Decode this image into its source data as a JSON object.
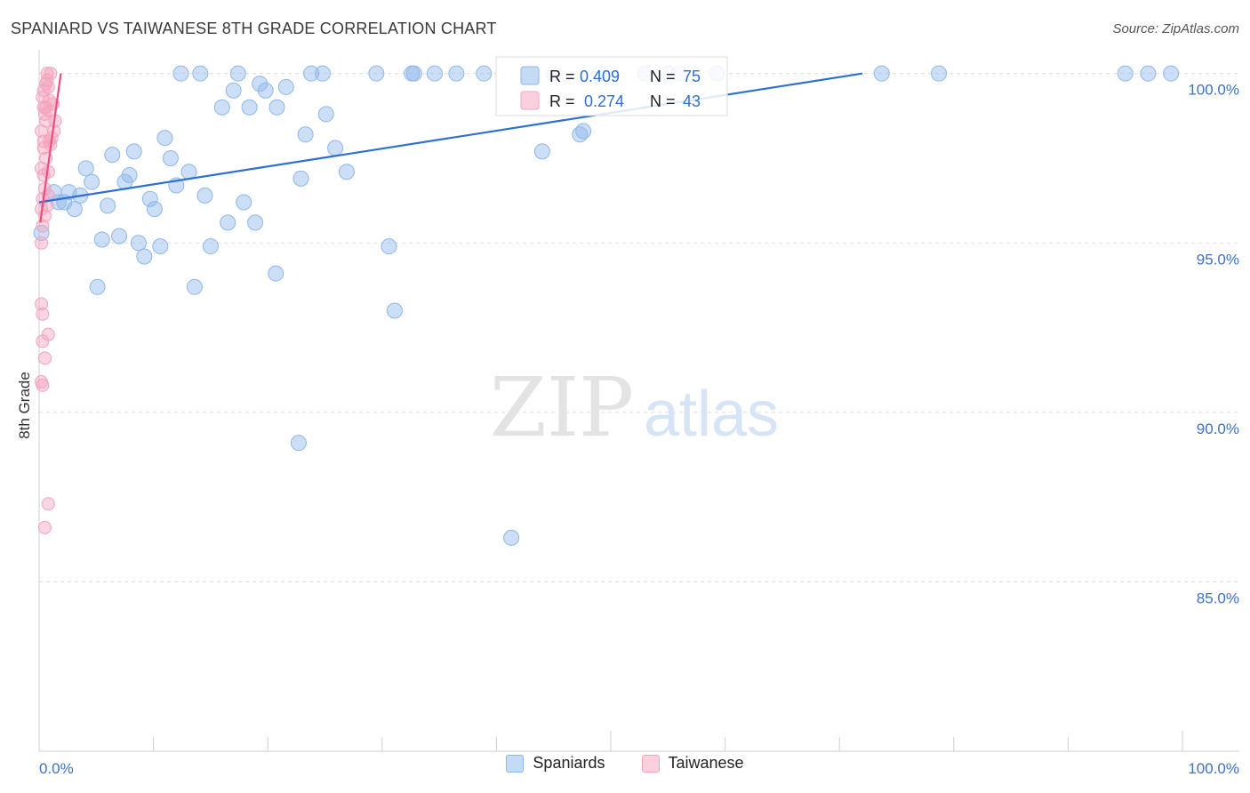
{
  "chart_data": {
    "type": "scatter",
    "title": "SPANIARD VS TAIWANESE 8TH GRADE CORRELATION CHART",
    "source": "Source: ZipAtlas.com",
    "ylabel": "8th Grade",
    "xlabel": "",
    "xlim": [
      0,
      100
    ],
    "ylim": [
      80.0,
      100.7
    ],
    "x_tick_labels": [
      "0.0%",
      "100.0%"
    ],
    "y_ticks": [
      {
        "value": 100.0,
        "label": "100.0%"
      },
      {
        "value": 95.0,
        "label": "95.0%"
      },
      {
        "value": 90.0,
        "label": "90.0%"
      },
      {
        "value": 85.0,
        "label": "85.0%"
      }
    ],
    "legend": {
      "r_label": "R =",
      "n_label": "N =",
      "rows": [
        {
          "r": "0.409",
          "n": "75"
        },
        {
          "r": "0.274",
          "n": "43"
        }
      ]
    },
    "watermark": {
      "zip": "ZIP",
      "atlas": "atlas"
    },
    "series": [
      {
        "name": "Spaniards",
        "color": "#8fb7ea",
        "line_color": "#2f6fd0",
        "trend": {
          "x": [
            0.0,
            72.0
          ],
          "y": [
            96.2,
            100.0
          ]
        },
        "points": [
          [
            0.2,
            95.3
          ],
          [
            1.3,
            96.5
          ],
          [
            1.7,
            96.2
          ],
          [
            2.2,
            96.2
          ],
          [
            2.6,
            96.5
          ],
          [
            3.1,
            96.0
          ],
          [
            3.6,
            96.4
          ],
          [
            4.1,
            97.2
          ],
          [
            4.6,
            96.8
          ],
          [
            5.1,
            93.7
          ],
          [
            5.5,
            95.1
          ],
          [
            6.0,
            96.1
          ],
          [
            6.4,
            97.6
          ],
          [
            7.0,
            95.2
          ],
          [
            7.5,
            96.8
          ],
          [
            7.9,
            97.0
          ],
          [
            8.3,
            97.7
          ],
          [
            8.7,
            95.0
          ],
          [
            9.2,
            94.6
          ],
          [
            9.7,
            96.3
          ],
          [
            10.1,
            96.0
          ],
          [
            10.6,
            94.9
          ],
          [
            11.0,
            98.1
          ],
          [
            11.5,
            97.5
          ],
          [
            12.0,
            96.7
          ],
          [
            12.4,
            100.0
          ],
          [
            13.1,
            97.1
          ],
          [
            13.6,
            93.7
          ],
          [
            14.1,
            100.0
          ],
          [
            14.5,
            96.4
          ],
          [
            15.0,
            94.9
          ],
          [
            16.0,
            99.0
          ],
          [
            16.5,
            95.6
          ],
          [
            17.0,
            99.5
          ],
          [
            17.4,
            100.0
          ],
          [
            17.9,
            96.2
          ],
          [
            18.4,
            99.0
          ],
          [
            18.9,
            95.6
          ],
          [
            19.3,
            99.7
          ],
          [
            19.8,
            99.5
          ],
          [
            20.7,
            94.1
          ],
          [
            20.8,
            99.0
          ],
          [
            21.6,
            99.6
          ],
          [
            22.7,
            89.1
          ],
          [
            22.9,
            96.9
          ],
          [
            23.3,
            98.2
          ],
          [
            23.8,
            100.0
          ],
          [
            24.8,
            100.0
          ],
          [
            25.1,
            98.8
          ],
          [
            25.9,
            97.8
          ],
          [
            26.9,
            97.1
          ],
          [
            29.5,
            100.0
          ],
          [
            30.6,
            94.9
          ],
          [
            31.1,
            93.0
          ],
          [
            32.6,
            100.0
          ],
          [
            32.8,
            100.0
          ],
          [
            34.6,
            100.0
          ],
          [
            36.5,
            100.0
          ],
          [
            38.9,
            100.0
          ],
          [
            41.3,
            86.3
          ],
          [
            44.0,
            97.7
          ],
          [
            45.0,
            100.0
          ],
          [
            47.3,
            98.2
          ],
          [
            47.6,
            98.3
          ],
          [
            49.0,
            100.0
          ],
          [
            50.0,
            100.0
          ],
          [
            53.0,
            100.0
          ],
          [
            55.0,
            100.0
          ],
          [
            56.0,
            100.0
          ],
          [
            59.3,
            100.0
          ],
          [
            73.7,
            100.0
          ],
          [
            78.7,
            100.0
          ],
          [
            95.0,
            100.0
          ],
          [
            97.0,
            100.0
          ],
          [
            99.0,
            100.0
          ]
        ]
      },
      {
        "name": "Taiwanese",
        "color": "#f5a3bd",
        "line_color": "#e8507f",
        "trend": {
          "x": [
            0.1,
            1.9
          ],
          "y": [
            95.6,
            100.0
          ]
        },
        "points": [
          [
            0.2,
            95.0
          ],
          [
            0.2,
            96.0
          ],
          [
            0.2,
            97.2
          ],
          [
            0.2,
            98.3
          ],
          [
            0.3,
            90.8
          ],
          [
            0.3,
            92.1
          ],
          [
            0.3,
            92.9
          ],
          [
            0.2,
            93.2
          ],
          [
            0.3,
            95.5
          ],
          [
            0.3,
            96.3
          ],
          [
            0.4,
            97.0
          ],
          [
            0.4,
            98.0
          ],
          [
            0.4,
            99.0
          ],
          [
            0.4,
            99.5
          ],
          [
            0.5,
            86.6
          ],
          [
            0.5,
            91.6
          ],
          [
            0.5,
            96.6
          ],
          [
            0.6,
            97.5
          ],
          [
            0.6,
            98.6
          ],
          [
            0.7,
            99.8
          ],
          [
            0.7,
            100.0
          ],
          [
            0.8,
            87.3
          ],
          [
            0.8,
            92.3
          ],
          [
            0.8,
            96.4
          ],
          [
            0.8,
            97.1
          ],
          [
            0.9,
            98.0
          ],
          [
            0.9,
            99.2
          ],
          [
            1.0,
            100.0
          ],
          [
            0.6,
            99.0
          ],
          [
            0.9,
            98.9
          ],
          [
            1.1,
            98.1
          ],
          [
            1.2,
            99.1
          ],
          [
            1.3,
            98.3
          ],
          [
            1.4,
            98.6
          ],
          [
            0.2,
            90.9
          ],
          [
            0.5,
            95.8
          ],
          [
            0.7,
            96.1
          ],
          [
            0.4,
            97.8
          ],
          [
            0.3,
            99.3
          ],
          [
            0.6,
            99.7
          ],
          [
            0.5,
            98.8
          ],
          [
            1.0,
            97.9
          ],
          [
            0.8,
            99.6
          ]
        ]
      }
    ]
  }
}
